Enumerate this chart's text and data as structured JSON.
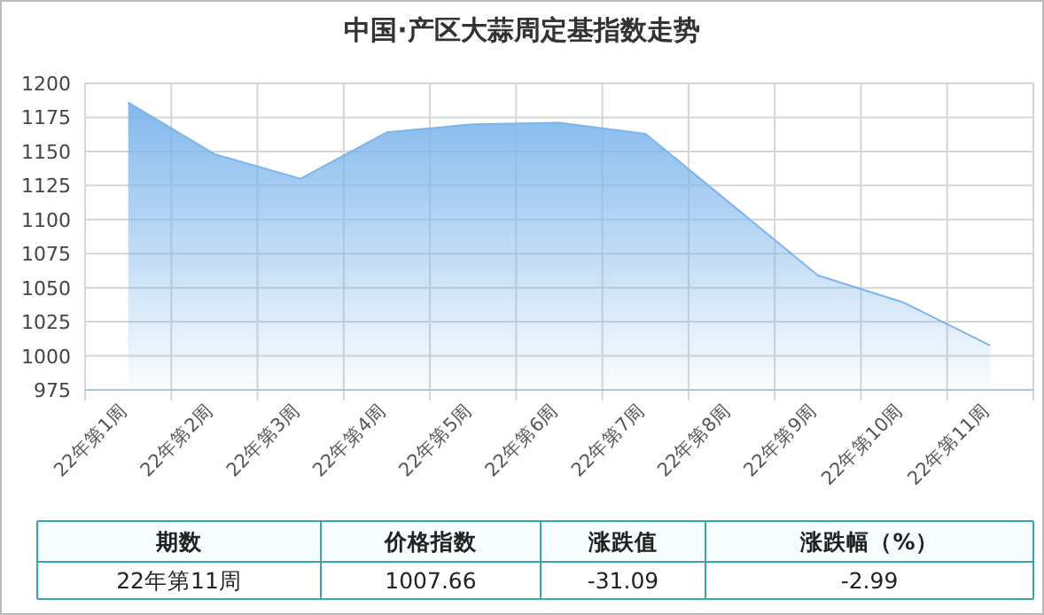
{
  "chart_data": {
    "type": "area",
    "title": "中国·产区大蒜周定基指数走势",
    "categories": [
      "22年第1周",
      "22年第2周",
      "22年第3周",
      "22年第4周",
      "22年第5周",
      "22年第6周",
      "22年第7周",
      "22年第8周",
      "22年第9周",
      "22年第10周",
      "22年第11周"
    ],
    "values": [
      1186,
      1148,
      1130,
      1164,
      1170,
      1171,
      1163,
      1111,
      1059,
      1039,
      1007.66
    ],
    "color": "#7cb5ec",
    "ylim": [
      975,
      1200
    ],
    "yticks": [
      975,
      1000,
      1025,
      1050,
      1075,
      1100,
      1125,
      1150,
      1175,
      1200
    ],
    "grid": true,
    "annotations": [
      "期数",
      "价格指数",
      "涨跌值",
      "涨跌幅（%）",
      "22年第11周",
      "1007.66",
      "-31.09",
      "-2.99"
    ]
  }
}
